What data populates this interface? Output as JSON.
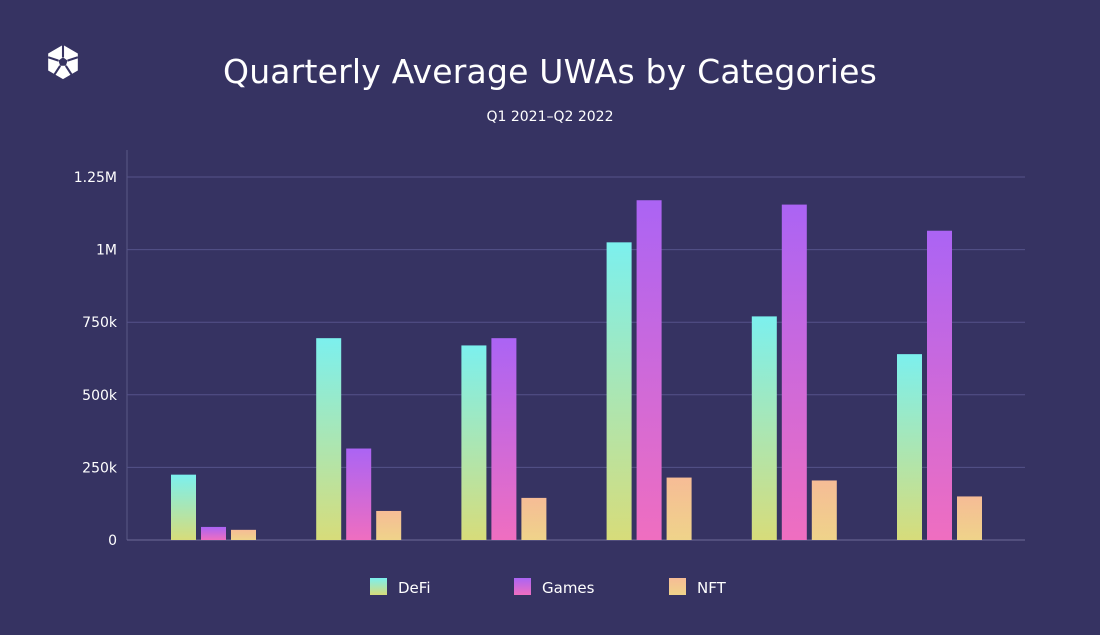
{
  "chart_data": {
    "type": "bar",
    "title": "Quarterly Average UWAs by Categories",
    "subtitle": "Q1 2021–Q2 2022",
    "xlabel": "",
    "ylabel": "",
    "categories": [
      "",
      "",
      "",
      "",
      "",
      ""
    ],
    "ylim": [
      0,
      1250000
    ],
    "yticks": [
      {
        "value": 0,
        "label": "0"
      },
      {
        "value": 250000,
        "label": "250k"
      },
      {
        "value": 500000,
        "label": "500k"
      },
      {
        "value": 750000,
        "label": "750k"
      },
      {
        "value": 1000000,
        "label": "1M"
      },
      {
        "value": 1250000,
        "label": "1.25M"
      }
    ],
    "grid": true,
    "legend_position": "bottom",
    "series": [
      {
        "name": "DeFi",
        "values": [
          225000,
          695000,
          670000,
          1025000,
          770000,
          640000
        ],
        "colors": [
          "#7cf0ee",
          "#d7dc7a"
        ]
      },
      {
        "name": "Games",
        "values": [
          45000,
          315000,
          695000,
          1170000,
          1155000,
          1065000
        ],
        "colors": [
          "#ab64f4",
          "#ef6ec0"
        ]
      },
      {
        "name": "NFT",
        "values": [
          35000,
          100000,
          145000,
          215000,
          205000,
          150000
        ],
        "colors": [
          "#f6bc96",
          "#efd38a"
        ]
      }
    ]
  }
}
